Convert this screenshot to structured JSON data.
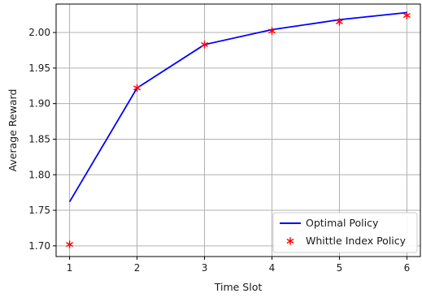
{
  "chart_data": {
    "type": "line",
    "title": "",
    "xlabel": "Time Slot",
    "ylabel": "Average Reward",
    "x": [
      1,
      2,
      3,
      4,
      5,
      6
    ],
    "xlim": [
      0.8,
      6.2
    ],
    "ylim": [
      1.685,
      2.04
    ],
    "xticks": [
      1,
      2,
      3,
      4,
      5,
      6
    ],
    "yticks": [
      1.7,
      1.75,
      1.8,
      1.85,
      1.9,
      1.95,
      2.0
    ],
    "grid": true,
    "legend_position": "bottom-right",
    "series": [
      {
        "name": "Optimal Policy",
        "style": "line",
        "color": "#0000ff",
        "values": [
          1.762,
          1.922,
          1.983,
          2.004,
          2.018,
          2.028
        ]
      },
      {
        "name": "Whittle Index Policy",
        "style": "marker",
        "marker": "asterisk",
        "color": "#ff0000",
        "values": [
          1.702,
          1.922,
          1.983,
          2.002,
          2.015,
          2.024
        ]
      }
    ]
  }
}
